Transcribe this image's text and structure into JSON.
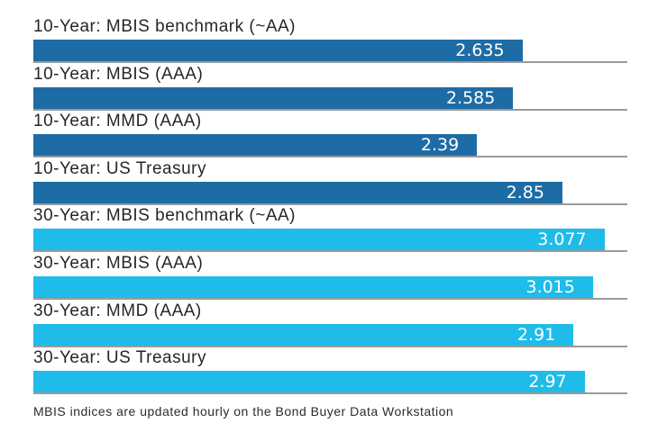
{
  "chart_data": {
    "type": "bar",
    "orientation": "horizontal",
    "title": "",
    "xlabel": "",
    "ylabel": "",
    "xlim": [
      0,
      3.2
    ],
    "grid": "baseline-under-each-bar",
    "legend": "none",
    "categories": [
      "10-Year: MBIS benchmark (~AA)",
      "10-Year: MBIS (AAA)",
      "10-Year: MMD (AAA)",
      "10-Year: US Treasury",
      "30-Year: MBIS benchmark (~AA)",
      "30-Year: MBIS (AAA)",
      "30-Year: MMD (AAA)",
      "30-Year: US Treasury"
    ],
    "values": [
      2.635,
      2.585,
      2.39,
      2.85,
      3.077,
      3.015,
      2.91,
      2.97
    ],
    "rows": [
      {
        "label": "10-Year: MBIS benchmark (~AA)",
        "value": 2.635,
        "display": "2.635",
        "group": "10-year"
      },
      {
        "label": "10-Year: MBIS (AAA)",
        "value": 2.585,
        "display": "2.585",
        "group": "10-year"
      },
      {
        "label": "10-Year: MMD (AAA)",
        "value": 2.39,
        "display": "2.39",
        "group": "10-year"
      },
      {
        "label": "10-Year: US Treasury",
        "value": 2.85,
        "display": "2.85",
        "group": "10-year"
      },
      {
        "label": "30-Year: MBIS benchmark (~AA)",
        "value": 3.077,
        "display": "3.077",
        "group": "30-year"
      },
      {
        "label": "30-Year: MBIS (AAA)",
        "value": 3.015,
        "display": "3.015",
        "group": "30-year"
      },
      {
        "label": "30-Year: MMD (AAA)",
        "value": 2.91,
        "display": "2.91",
        "group": "30-year"
      },
      {
        "label": "30-Year: US Treasury",
        "value": 2.97,
        "display": "2.97",
        "group": "30-year"
      }
    ],
    "colors": {
      "10-year": "#1E6CA6",
      "30-year": "#1FBCE9",
      "gridline": "#9A9A9A",
      "label_text": "#262626",
      "value_text": "#FFFFFF",
      "background": "#FFFFFF"
    }
  },
  "footer": {
    "note": "MBIS indices are updated hourly on the Bond Buyer Data Workstation"
  }
}
